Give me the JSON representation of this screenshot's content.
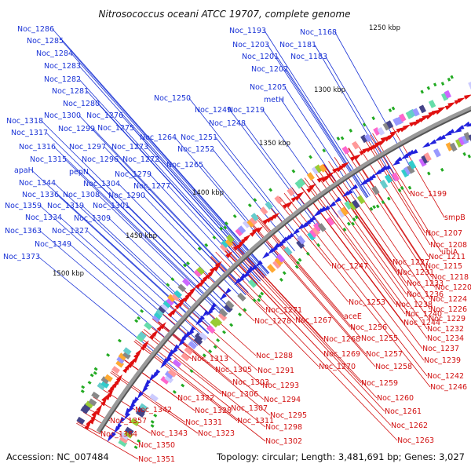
{
  "title": "Nitrosococcus oceani ATCC 19707, complete genome",
  "footer": {
    "accession": "Accession: NC_007484",
    "summary": "Topology: circular; Length: 3,481,691 bp; Genes: 3,027"
  },
  "colors": {
    "forward": "#2222dd",
    "reverse": "#e01010",
    "blue_label": "#1a33d6",
    "red_label": "#d10f0f",
    "backbone": "#888888"
  },
  "ticks": [
    "1250 kbp",
    "1300 kbp",
    "1350 kbp",
    "1400 kbp",
    "1450 kbp",
    "1500 kbp"
  ],
  "blue_labels": [
    "Noc_1286",
    "Noc_1285",
    "Noc_1284",
    "Noc_1283",
    "Noc_1282",
    "Noc_1281",
    "Noc_1280",
    "Noc_1300",
    "Noc_1276",
    "Noc_1318",
    "Noc_1275",
    "Noc_1299",
    "Noc_1317",
    "Noc_1264",
    "Noc_1316",
    "Noc_1297",
    "Noc_1273",
    "Noc_1315",
    "Noc_1296",
    "Noc_1272",
    "apaH",
    "pepN",
    "Noc_1279",
    "Noc_1344",
    "Noc_1304",
    "Noc_1277",
    "Noc_1336",
    "Noc_1308",
    "Noc_1290",
    "Noc_1359",
    "Noc_1319",
    "Noc_1301",
    "Noc_1334",
    "Noc_1309",
    "Noc_1363",
    "Noc_1327",
    "Noc_1349",
    "Noc_1373",
    "Noc_1193",
    "Noc_1168",
    "Noc_1203",
    "Noc_1181",
    "Noc_1201",
    "Noc_1183",
    "Noc_1202",
    "Noc_1205",
    "metH",
    "Noc_1250",
    "Noc_1249",
    "Noc_1219",
    "Noc_1248",
    "Noc_1251",
    "Noc_1252",
    "Noc_1265"
  ],
  "red_labels": [
    "Noc_1199",
    "smpB",
    "Noc_1207",
    "Noc_1208",
    "ubiA",
    "Noc_1211",
    "Noc_1227",
    "Noc_1215",
    "Noc_1231",
    "Noc_1218",
    "Noc_1247",
    "Noc_1233",
    "Noc_1220",
    "Noc_1236",
    "Noc_1224",
    "Noc_1238",
    "Noc_1226",
    "Noc_1253",
    "Noc_1240",
    "Noc_1229",
    "Noc_1271",
    "Noc_1244",
    "Noc_1232",
    "aceE",
    "Noc_1278",
    "Noc_1267",
    "Noc_1256",
    "Noc_1234",
    "Noc_1268",
    "Noc_1255",
    "Noc_1237",
    "Noc_1269",
    "Noc_1257",
    "Noc_1239",
    "Noc_1270",
    "Noc_1258",
    "Noc_1242",
    "Noc_1246",
    "Noc_1259",
    "Noc_1288",
    "Noc_1313",
    "Noc_1291",
    "Noc_1305",
    "Noc_1303",
    "Noc_1293",
    "Noc_1306",
    "Noc_1294",
    "Noc_1260",
    "Noc_1322",
    "Noc_1307",
    "Noc_1295",
    "Noc_1261",
    "Noc_1342",
    "Noc_1328",
    "Noc_1311",
    "Noc_1298",
    "Noc_1262",
    "Noc_1357",
    "Noc_1331",
    "Noc_1364",
    "Noc_1343",
    "Noc_1323",
    "Noc_1302",
    "Noc_1263",
    "Noc_1350",
    "Noc_1351"
  ]
}
